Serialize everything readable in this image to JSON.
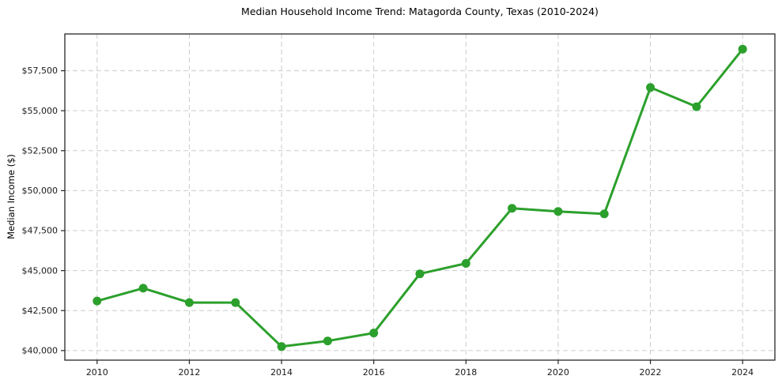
{
  "chart_data": {
    "type": "line",
    "title": "Median Household Income Trend: Matagorda County, Texas (2010-2024)",
    "xlabel": "",
    "ylabel": "Median Income ($)",
    "series": [
      {
        "name": "Median Household Income",
        "x": [
          2010,
          2011,
          2012,
          2013,
          2014,
          2015,
          2016,
          2017,
          2018,
          2019,
          2020,
          2021,
          2022,
          2023,
          2024
        ],
        "values": [
          43100,
          43900,
          43000,
          43000,
          40250,
          40600,
          41100,
          44800,
          45450,
          48900,
          48700,
          48550,
          56450,
          55250,
          58850
        ]
      }
    ],
    "xlim": [
      2009.3,
      2024.7
    ],
    "ylim": [
      39400,
      59800
    ],
    "xticks": [
      2010,
      2012,
      2014,
      2016,
      2018,
      2020,
      2022,
      2024
    ],
    "xtick_labels": [
      "2010",
      "2012",
      "2014",
      "2016",
      "2018",
      "2020",
      "2022",
      "2024"
    ],
    "yticks": [
      40000,
      42500,
      45000,
      47500,
      50000,
      52500,
      55000,
      57500
    ],
    "ytick_labels": [
      "$40,000",
      "$42,500",
      "$45,000",
      "$47,500",
      "$50,000",
      "$52,500",
      "$55,000",
      "$57,500"
    ],
    "grid": true,
    "grid_style": "dashed",
    "legend": "none",
    "colors": {
      "line": "#2ca02c",
      "marker": "#2ca02c",
      "grid": "#cccccc",
      "spine": "#262626",
      "tick_text": "#1a1a1a",
      "background": "#ffffff"
    }
  }
}
